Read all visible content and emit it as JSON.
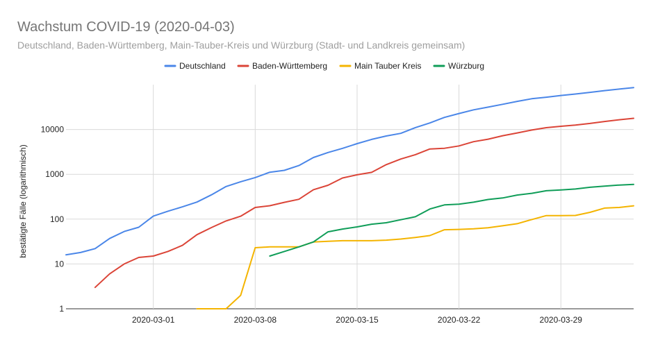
{
  "chart_data": {
    "type": "line",
    "title": "Wachstum COVID-19 (2020-04-03)",
    "subtitle": "Deutschland, Baden-Württemberg, Main-Tauber-Kreis und Würzburg (Stadt- und Landkreis gemeinsam)",
    "xlabel": "",
    "ylabel": "bestätigte Fälle (logarithmisch)",
    "yscale": "log",
    "ylim": [
      1,
      100000
    ],
    "xlim": [
      "2020-02-24",
      "2020-04-03"
    ],
    "yticks": [
      1,
      10,
      100,
      1000,
      10000
    ],
    "ytick_labels": [
      "1",
      "10",
      "100",
      "1000",
      "10000"
    ],
    "xticks": [
      "2020-03-01",
      "2020-03-08",
      "2020-03-15",
      "2020-03-22",
      "2020-03-29"
    ],
    "grid": true,
    "legend": "top",
    "series": [
      {
        "name": "Deutschland",
        "color": "#4a86e8",
        "points": [
          [
            "2020-02-24",
            16
          ],
          [
            "2020-02-25",
            18
          ],
          [
            "2020-02-26",
            22
          ],
          [
            "2020-02-27",
            37
          ],
          [
            "2020-02-28",
            53
          ],
          [
            "2020-02-29",
            66
          ],
          [
            "2020-03-01",
            117
          ],
          [
            "2020-03-02",
            150
          ],
          [
            "2020-03-03",
            188
          ],
          [
            "2020-03-04",
            240
          ],
          [
            "2020-03-05",
            349
          ],
          [
            "2020-03-06",
            534
          ],
          [
            "2020-03-07",
            684
          ],
          [
            "2020-03-08",
            847
          ],
          [
            "2020-03-09",
            1112
          ],
          [
            "2020-03-10",
            1224
          ],
          [
            "2020-03-11",
            1565
          ],
          [
            "2020-03-12",
            2369
          ],
          [
            "2020-03-13",
            3062
          ],
          [
            "2020-03-14",
            3795
          ],
          [
            "2020-03-15",
            4838
          ],
          [
            "2020-03-16",
            6012
          ],
          [
            "2020-03-17",
            7156
          ],
          [
            "2020-03-18",
            8198
          ],
          [
            "2020-03-19",
            10999
          ],
          [
            "2020-03-20",
            13957
          ],
          [
            "2020-03-21",
            18610
          ],
          [
            "2020-03-22",
            22672
          ],
          [
            "2020-03-23",
            27436
          ],
          [
            "2020-03-24",
            31554
          ],
          [
            "2020-03-25",
            36508
          ],
          [
            "2020-03-26",
            42288
          ],
          [
            "2020-03-27",
            48582
          ],
          [
            "2020-03-28",
            52547
          ],
          [
            "2020-03-29",
            57298
          ],
          [
            "2020-03-30",
            61913
          ],
          [
            "2020-03-31",
            67366
          ],
          [
            "2020-04-01",
            73522
          ],
          [
            "2020-04-02",
            79696
          ],
          [
            "2020-04-03",
            85778
          ]
        ]
      },
      {
        "name": "Baden-Württemberg",
        "color": "#db4437",
        "points": [
          [
            "2020-02-26",
            3
          ],
          [
            "2020-02-27",
            6
          ],
          [
            "2020-02-28",
            10
          ],
          [
            "2020-02-29",
            14
          ],
          [
            "2020-03-01",
            15
          ],
          [
            "2020-03-02",
            19
          ],
          [
            "2020-03-03",
            26
          ],
          [
            "2020-03-04",
            45
          ],
          [
            "2020-03-05",
            65
          ],
          [
            "2020-03-06",
            91
          ],
          [
            "2020-03-07",
            116
          ],
          [
            "2020-03-08",
            182
          ],
          [
            "2020-03-09",
            199
          ],
          [
            "2020-03-10",
            237
          ],
          [
            "2020-03-11",
            277
          ],
          [
            "2020-03-12",
            454
          ],
          [
            "2020-03-13",
            569
          ],
          [
            "2020-03-14",
            827
          ],
          [
            "2020-03-15",
            977
          ],
          [
            "2020-03-16",
            1105
          ],
          [
            "2020-03-17",
            1643
          ],
          [
            "2020-03-18",
            2194
          ],
          [
            "2020-03-19",
            2746
          ],
          [
            "2020-03-20",
            3668
          ],
          [
            "2020-03-21",
            3807
          ],
          [
            "2020-03-22",
            4302
          ],
          [
            "2020-03-23",
            5334
          ],
          [
            "2020-03-24",
            6069
          ],
          [
            "2020-03-25",
            7252
          ],
          [
            "2020-03-26",
            8375
          ],
          [
            "2020-03-27",
            9726
          ],
          [
            "2020-03-28",
            10990
          ],
          [
            "2020-03-29",
            11797
          ],
          [
            "2020-03-30",
            12541
          ],
          [
            "2020-03-31",
            13653
          ],
          [
            "2020-04-01",
            15065
          ],
          [
            "2020-04-02",
            16462
          ],
          [
            "2020-04-03",
            17778
          ]
        ]
      },
      {
        "name": "Main Tauber Kreis",
        "color": "#f4b400",
        "points": [
          [
            "2020-03-04",
            1
          ],
          [
            "2020-03-05",
            1
          ],
          [
            "2020-03-06",
            1
          ],
          [
            "2020-03-07",
            2
          ],
          [
            "2020-03-08",
            23
          ],
          [
            "2020-03-09",
            24
          ],
          [
            "2020-03-10",
            24
          ],
          [
            "2020-03-11",
            24
          ],
          [
            "2020-03-12",
            31
          ],
          [
            "2020-03-13",
            32
          ],
          [
            "2020-03-14",
            33
          ],
          [
            "2020-03-15",
            33
          ],
          [
            "2020-03-16",
            33
          ],
          [
            "2020-03-17",
            34
          ],
          [
            "2020-03-18",
            36
          ],
          [
            "2020-03-19",
            39
          ],
          [
            "2020-03-20",
            43
          ],
          [
            "2020-03-21",
            58
          ],
          [
            "2020-03-22",
            59
          ],
          [
            "2020-03-23",
            61
          ],
          [
            "2020-03-24",
            64
          ],
          [
            "2020-03-25",
            71
          ],
          [
            "2020-03-26",
            79
          ],
          [
            "2020-03-27",
            98
          ],
          [
            "2020-03-28",
            120
          ],
          [
            "2020-03-29",
            120
          ],
          [
            "2020-03-30",
            121
          ],
          [
            "2020-03-31",
            142
          ],
          [
            "2020-04-01",
            176
          ],
          [
            "2020-04-02",
            182
          ],
          [
            "2020-04-03",
            198
          ]
        ]
      },
      {
        "name": "Würzburg",
        "color": "#0f9d58",
        "points": [
          [
            "2020-03-09",
            15
          ],
          [
            "2020-03-10",
            19
          ],
          [
            "2020-03-11",
            24
          ],
          [
            "2020-03-12",
            31
          ],
          [
            "2020-03-13",
            52
          ],
          [
            "2020-03-14",
            60
          ],
          [
            "2020-03-15",
            67
          ],
          [
            "2020-03-16",
            77
          ],
          [
            "2020-03-17",
            83
          ],
          [
            "2020-03-18",
            97
          ],
          [
            "2020-03-19",
            113
          ],
          [
            "2020-03-20",
            168
          ],
          [
            "2020-03-21",
            208
          ],
          [
            "2020-03-22",
            216
          ],
          [
            "2020-03-23",
            239
          ],
          [
            "2020-03-24",
            274
          ],
          [
            "2020-03-25",
            297
          ],
          [
            "2020-03-26",
            344
          ],
          [
            "2020-03-27",
            376
          ],
          [
            "2020-03-28",
            430
          ],
          [
            "2020-03-29",
            448
          ],
          [
            "2020-03-30",
            470
          ],
          [
            "2020-03-31",
            514
          ],
          [
            "2020-04-01",
            543
          ],
          [
            "2020-04-02",
            576
          ],
          [
            "2020-04-03",
            597
          ]
        ]
      }
    ]
  }
}
